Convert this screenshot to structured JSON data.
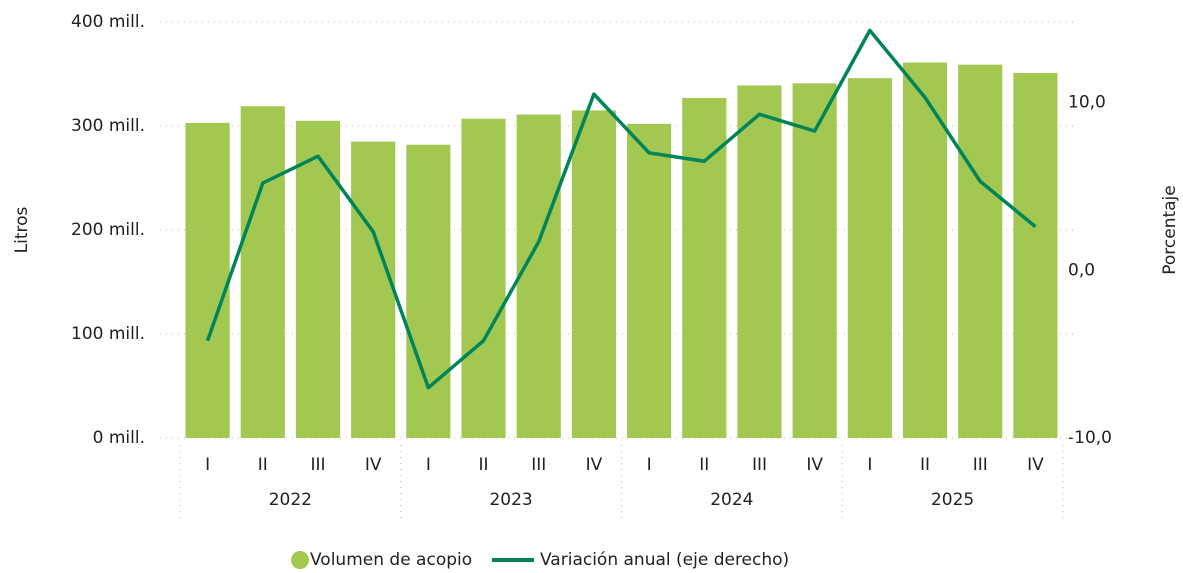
{
  "chart_data": {
    "type": "combo",
    "categories": [
      "I",
      "II",
      "III",
      "IV",
      "I",
      "II",
      "III",
      "IV",
      "I",
      "II",
      "III",
      "IV",
      "I",
      "II",
      "III",
      "IV"
    ],
    "years": [
      "2022",
      "2023",
      "2024",
      "2025"
    ],
    "ylabel": "Litros",
    "y2label": "Porcentaje",
    "ylim": [
      0,
      400000000
    ],
    "yticks": [
      {
        "value": 0,
        "label": "0 mill."
      },
      {
        "value": 100000000,
        "label": "100 mill."
      },
      {
        "value": 200000000,
        "label": "200 mill."
      },
      {
        "value": 300000000,
        "label": "300 mill."
      },
      {
        "value": 400000000,
        "label": "400 mill."
      }
    ],
    "y2lim": [
      -10,
      14.8
    ],
    "y2ticks": [
      {
        "value": -10,
        "label": "-10,0"
      },
      {
        "value": 0,
        "label": "0,0"
      },
      {
        "value": 10,
        "label": "10,0"
      }
    ],
    "grid": true,
    "legend": "bottom",
    "series": [
      {
        "name": "Volumen de acopio",
        "type": "bar",
        "color": "#a2c851",
        "values": [
          303000000,
          319000000,
          305000000,
          285000000,
          282000000,
          307000000,
          311000000,
          315000000,
          302000000,
          327000000,
          339000000,
          341000000,
          346000000,
          361000000,
          359000000,
          351000000
        ]
      },
      {
        "name": "Variación anual (eje derecho)",
        "type": "line",
        "axis": "y2",
        "color": "#00845a",
        "values": [
          -4.2,
          5.2,
          6.8,
          2.3,
          -7.0,
          -4.2,
          1.7,
          10.5,
          7.0,
          6.5,
          9.3,
          8.3,
          14.3,
          10.3,
          5.3,
          2.6
        ]
      }
    ]
  }
}
